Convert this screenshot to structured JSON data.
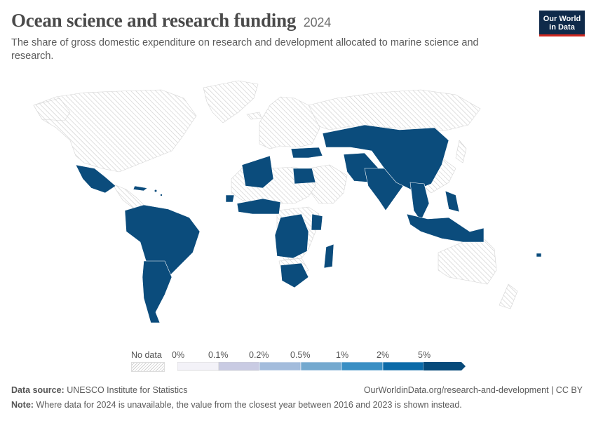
{
  "header": {
    "title": "Ocean science and research funding",
    "year": "2024",
    "subtitle": "The share of gross domestic expenditure on research and development allocated to marine science and research."
  },
  "logo": {
    "line1": "Our World",
    "line2": "in Data"
  },
  "legend": {
    "no_data_label": "No data",
    "bins": [
      "0%",
      "0.1%",
      "0.2%",
      "0.5%",
      "1%",
      "2%",
      "5%"
    ],
    "colors": [
      "#ecebf5",
      "#c9cbe3",
      "#a3bcdc",
      "#74a9cf",
      "#3a8fc4",
      "#0b6aa8",
      "#074a7a"
    ]
  },
  "map": {
    "data_color": "#0b4c7c",
    "no_data_pattern": "hatched-light-grey",
    "countries_with_data": [
      "Mexico",
      "Colombia",
      "Venezuela",
      "Brazil",
      "Peru",
      "Chile",
      "Argentina",
      "Ecuador",
      "Cuba",
      "Algeria",
      "Egypt",
      "Senegal",
      "Nigeria",
      "Ghana",
      "Côte d'Ivoire",
      "Gabon",
      "Angola",
      "Kenya",
      "Tanzania",
      "Madagascar",
      "South Africa",
      "Namibia",
      "Turkey",
      "Iran",
      "Pakistan",
      "India",
      "Kazakhstan",
      "China",
      "Mongolia",
      "Thailand",
      "Vietnam",
      "Philippines",
      "Indonesia",
      "Malaysia",
      "Papua New Guinea"
    ]
  },
  "footer": {
    "source_label": "Data source:",
    "source_text": "UNESCO Institute for Statistics",
    "url_text": "OurWorldinData.org/research-and-development | CC BY",
    "note_label": "Note:",
    "note_text": "Where data for 2024 is unavailable, the value from the closest year between 2016 and 2023 is shown instead."
  }
}
